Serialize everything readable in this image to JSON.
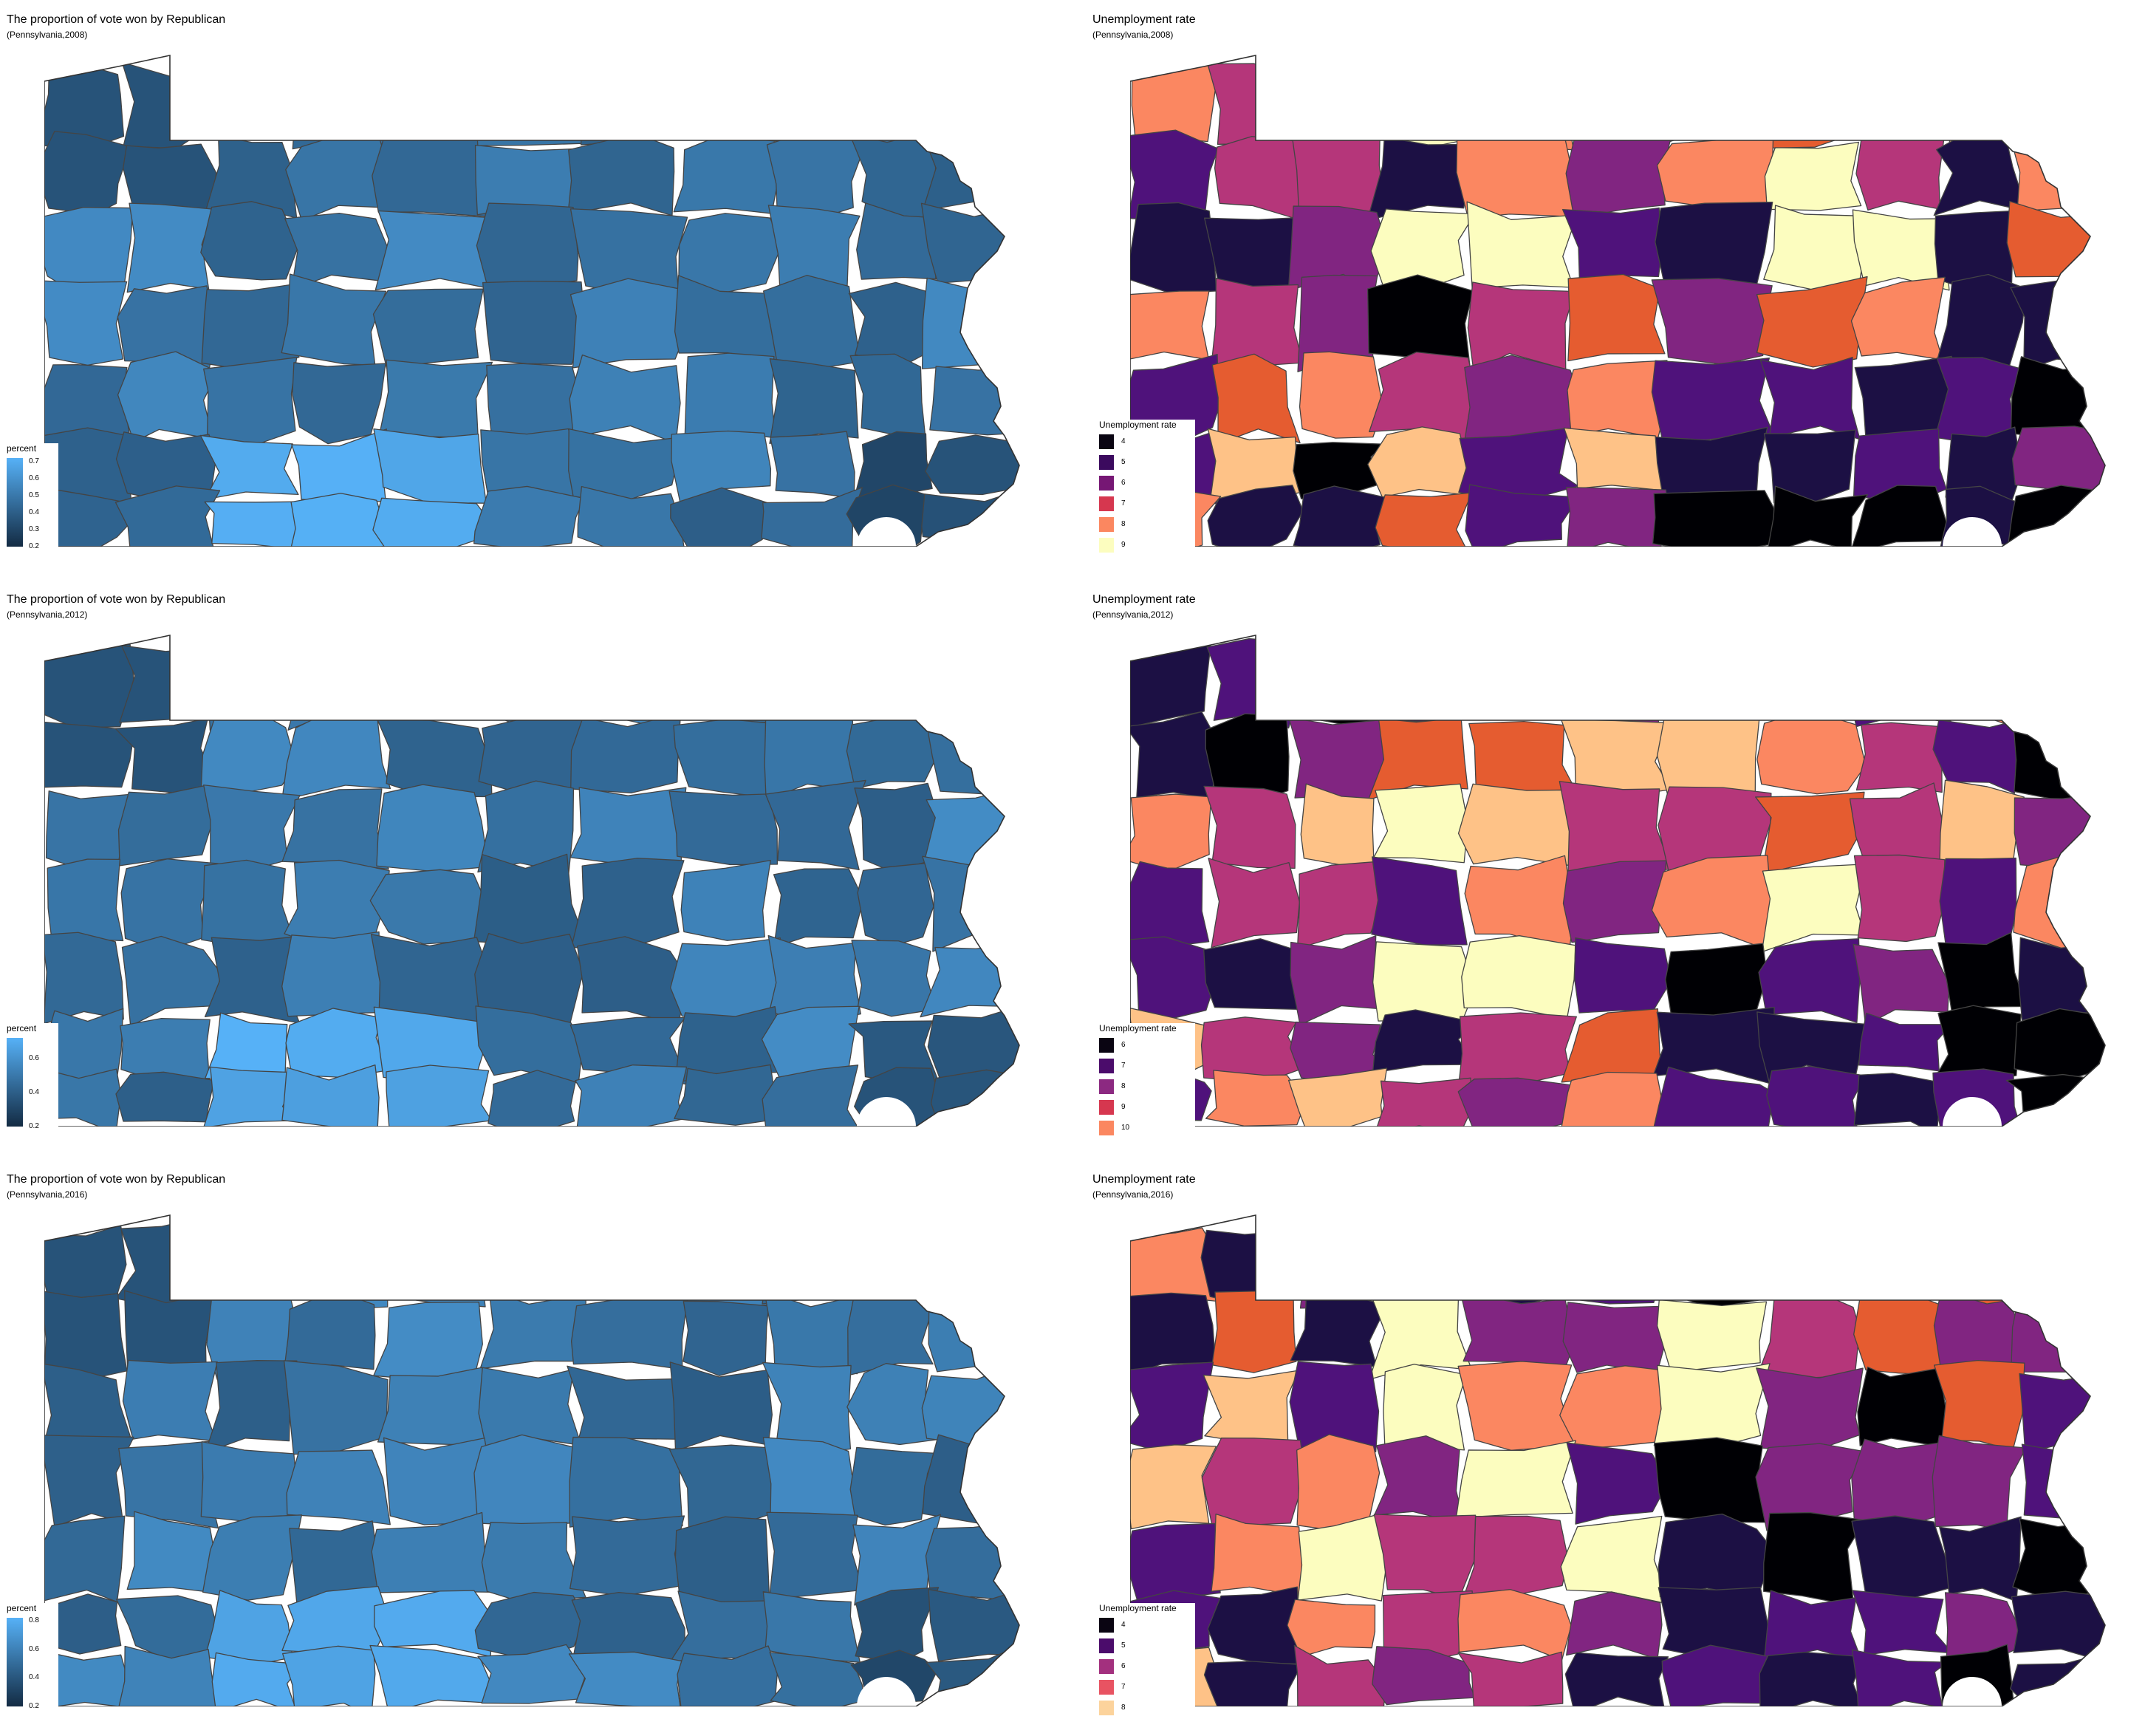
{
  "panels": [
    {
      "id": "rep2008",
      "kind": "vote",
      "title": "The proportion of vote won by Republican",
      "subtitle": "(Pennsylvania,2008)",
      "legend": {
        "title": "percent",
        "range": [
          0.2,
          0.72
        ],
        "ticks": [
          "0.7",
          "0.6",
          "0.5",
          "0.4",
          "0.3",
          "0.2"
        ]
      }
    },
    {
      "id": "unemp2008",
      "kind": "unemp",
      "title": "Unemployment rate",
      "subtitle": "(Pennsylvania,2008)",
      "legend": {
        "title": "Unemployment rate",
        "items": [
          "4",
          "5",
          "6",
          "7",
          "8",
          "9"
        ],
        "colors": [
          "#0a0512",
          "#3b0a5e",
          "#761774",
          "#d6374f",
          "#fb8760",
          "#fcfdbf"
        ]
      }
    },
    {
      "id": "rep2012",
      "kind": "vote",
      "title": "The proportion of vote won by Republican",
      "subtitle": "(Pennsylvania,2012)",
      "legend": {
        "title": "percent",
        "range": [
          0.2,
          0.72
        ],
        "ticks": [
          "0.6",
          "0.4",
          "0.2"
        ]
      }
    },
    {
      "id": "unemp2012",
      "kind": "unemp",
      "title": "Unemployment rate",
      "subtitle": "(Pennsylvania,2012)",
      "legend": {
        "title": "Unemployment rate",
        "items": [
          "6",
          "7",
          "8",
          "9",
          "10"
        ],
        "colors": [
          "#0a0512",
          "#4b0c6b",
          "#8c2981",
          "#d6374f",
          "#fb8760"
        ]
      }
    },
    {
      "id": "rep2016",
      "kind": "vote",
      "title": "The proportion of vote won by Republican",
      "subtitle": "(Pennsylvania,2016)",
      "legend": {
        "title": "percent",
        "range": [
          0.2,
          0.82
        ],
        "ticks": [
          "0.8",
          "0.6",
          "0.4",
          "0.2"
        ]
      }
    },
    {
      "id": "unemp2016",
      "kind": "unemp",
      "title": "Unemployment rate",
      "subtitle": "(Pennsylvania,2016)",
      "legend": {
        "title": "Unemployment rate",
        "items": [
          "4",
          "5",
          "6",
          "7",
          "8"
        ],
        "colors": [
          "#0a0512",
          "#4b0c6b",
          "#a3307e",
          "#e85362",
          "#fcd39c"
        ]
      }
    }
  ],
  "colors": {
    "vote_low": "#132b43",
    "vote_high": "#56b1f7",
    "unemp_palette": [
      "#000004",
      "#1c1044",
      "#4f127b",
      "#812581",
      "#b5367a",
      "#e55c30",
      "#fb8761",
      "#fec287",
      "#fcfdbf"
    ],
    "border": "#444444",
    "background": "#ffffff"
  }
}
